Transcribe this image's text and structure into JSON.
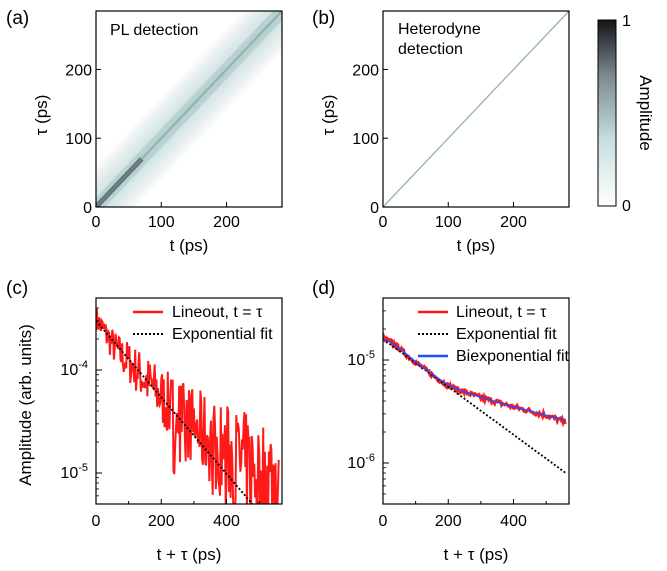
{
  "colors": {
    "lineout": "#ff1a1a",
    "exp_fit": "#000000",
    "biexp_fit": "#1f4fff",
    "map_low": "#ffffff",
    "map_mid": "#cfe3e3",
    "map_high": "#1e1e24"
  },
  "chart_data": [
    {
      "id": "a",
      "type": "heatmap",
      "panel_label": "(a)",
      "title": "PL detection",
      "xlabel": "t (ps)",
      "ylabel": "τ (ps)",
      "xlim": [
        0,
        285
      ],
      "ylim": [
        0,
        285
      ],
      "xticks": [
        0,
        100,
        200
      ],
      "yticks": [
        0,
        100,
        200
      ],
      "band_halfwidth_ps": 60,
      "diagonal": "broad"
    },
    {
      "id": "b",
      "type": "heatmap",
      "panel_label": "(b)",
      "title_lines": [
        "Heterodyne",
        "detection"
      ],
      "xlabel": "t (ps)",
      "ylabel": "τ (ps)",
      "xlim": [
        0,
        285
      ],
      "ylim": [
        0,
        285
      ],
      "xticks": [
        0,
        100,
        200
      ],
      "yticks": [
        0,
        100,
        200
      ],
      "diagonal": "narrow",
      "colorbar": {
        "label": "Amplitude",
        "ticks": [
          "0",
          "1"
        ],
        "range": [
          0,
          1
        ]
      }
    },
    {
      "id": "c",
      "type": "line",
      "panel_label": "(c)",
      "xlabel": "t + τ (ps)",
      "ylabel": "Amplitude (arb. units)",
      "xlim": [
        0,
        570
      ],
      "ylim": [
        5e-06,
        0.0005
      ],
      "yscale": "log",
      "xticks": [
        0,
        200,
        400
      ],
      "yticks": [
        {
          "value": 0.0001,
          "label": "10",
          "exp": "-4"
        },
        {
          "value": 1e-05,
          "label": "10",
          "exp": "-5"
        }
      ],
      "legend": {
        "position": "top-right",
        "entries": [
          "Lineout, t = τ",
          "Exponential fit"
        ]
      },
      "series": [
        {
          "name": "Lineout, t = τ",
          "style": "noisy",
          "x": [
            0,
            20,
            40,
            60,
            80,
            100,
            130,
            160,
            200,
            230,
            260,
            290,
            320,
            350,
            380,
            410,
            440,
            470,
            500,
            530,
            560
          ],
          "y": [
            0.00032,
            0.00025,
            0.0002,
            0.00016,
            0.000135,
            0.00012,
            9.5e-05,
            7.5e-05,
            5.5e-05,
            4.3e-05,
            3.6e-05,
            3e-05,
            2.5e-05,
            2.1e-05,
            1.7e-05,
            1.5e-05,
            1.3e-05,
            1.1e-05,
            1e-05,
            9e-06,
            8.5e-06
          ]
        },
        {
          "name": "Exponential fit",
          "style": "dotted",
          "x": [
            0,
            560
          ],
          "y": [
            0.0003,
            2.5e-06
          ]
        }
      ]
    },
    {
      "id": "d",
      "type": "line",
      "panel_label": "(d)",
      "xlabel": "t + τ (ps)",
      "ylabel": "",
      "xlim": [
        0,
        570
      ],
      "ylim": [
        4e-07,
        4e-05
      ],
      "yscale": "log",
      "xticks": [
        0,
        200,
        400
      ],
      "yticks": [
        {
          "value": 1e-05,
          "label": "10",
          "exp": "-5"
        },
        {
          "value": 1e-06,
          "label": "10",
          "exp": "-6"
        }
      ],
      "legend": {
        "position": "top-right",
        "entries": [
          "Lineout, t = τ",
          "Exponential fit",
          "Biexponential fit"
        ]
      },
      "series": [
        {
          "name": "Lineout, t = τ",
          "style": "smooth",
          "x": [
            0,
            25,
            50,
            75,
            100,
            150,
            200,
            250,
            300,
            350,
            400,
            450,
            500,
            560
          ],
          "y": [
            1.6e-05,
            1.5e-05,
            1.3e-05,
            1.1e-05,
            9.5e-06,
            7.2e-06,
            5.6e-06,
            4.9e-06,
            4.3e-06,
            3.9e-06,
            3.5e-06,
            3.2e-06,
            2.9e-06,
            2.5e-06
          ]
        },
        {
          "name": "Exponential fit",
          "style": "dotted",
          "x": [
            0,
            560
          ],
          "y": [
            1.6e-05,
            8e-07
          ]
        },
        {
          "name": "Biexponential fit",
          "style": "solid",
          "x": [
            0,
            25,
            50,
            75,
            100,
            150,
            200,
            250,
            300,
            350,
            400,
            450,
            500,
            560
          ],
          "y": [
            1.6e-05,
            1.48e-05,
            1.3e-05,
            1.12e-05,
            9.6e-06,
            7.3e-06,
            5.7e-06,
            4.9e-06,
            4.35e-06,
            3.9e-06,
            3.5e-06,
            3.2e-06,
            2.9e-06,
            2.6e-06
          ]
        }
      ]
    }
  ]
}
